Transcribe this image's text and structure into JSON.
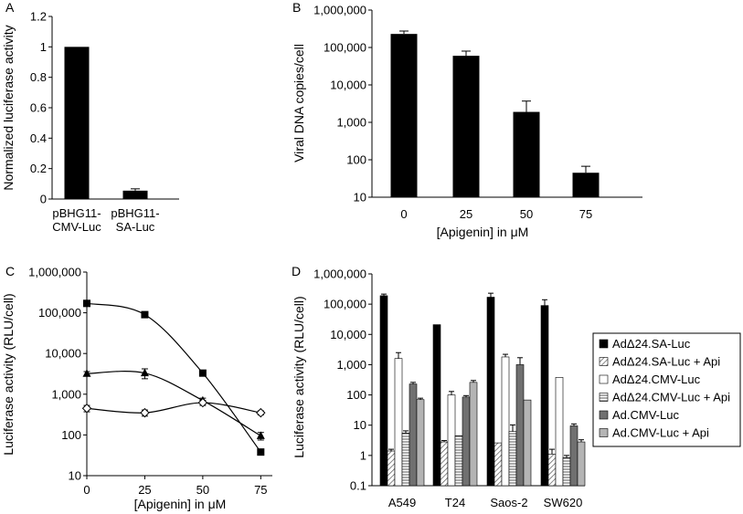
{
  "colors": {
    "black": "#000000",
    "darkgray": "#707070",
    "lightgray": "#b4b4b4",
    "white": "#ffffff"
  },
  "chart_data": [
    {
      "panel": "A",
      "type": "bar",
      "categories": [
        "pBHG11-CMV-Luc",
        "pBHG11-SA-Luc"
      ],
      "category_lines": [
        [
          "pBHG11-",
          "CMV-Luc"
        ],
        [
          "pBHG11-",
          "SA-Luc"
        ]
      ],
      "values": [
        1.0,
        0.055
      ],
      "errors": [
        0,
        0.012
      ],
      "ylabel": "Normalized luciferase activity",
      "xlabel": "",
      "ylim": [
        0,
        1.2
      ],
      "yticks": [
        0,
        0.2,
        0.4,
        0.6,
        0.8,
        1,
        1.2
      ],
      "ytick_labels": [
        "0",
        "0.2",
        "0.4",
        "0.6",
        "0.8",
        "1",
        "1.2"
      ],
      "scale": "linear"
    },
    {
      "panel": "B",
      "type": "bar",
      "categories": [
        "0",
        "25",
        "50",
        "75"
      ],
      "values": [
        230000,
        60000,
        1900,
        45
      ],
      "errors": [
        45000,
        20000,
        1800,
        22
      ],
      "ylabel": "Viral DNA copies/cell",
      "xlabel": "[Apigenin] in μM",
      "ylim": [
        10,
        1000000
      ],
      "yticks": [
        10,
        100,
        1000,
        10000,
        100000,
        1000000
      ],
      "ytick_labels": [
        "10",
        "100",
        "1,000",
        "10,000",
        "100,000",
        "1,000,000"
      ],
      "scale": "log"
    },
    {
      "panel": "C",
      "type": "line",
      "x": [
        0,
        25,
        50,
        75
      ],
      "xlim": [
        0,
        80
      ],
      "xticks": [
        0,
        25,
        50,
        75
      ],
      "series": [
        {
          "marker": "square",
          "values": [
            170000,
            90000,
            3300,
            38
          ],
          "errors": [
            25000,
            10000,
            500,
            6
          ]
        },
        {
          "marker": "triangle",
          "values": [
            3200,
            3300,
            700,
            95
          ],
          "errors": [
            400,
            900,
            100,
            20
          ]
        },
        {
          "marker": "diamond",
          "values": [
            450,
            350,
            620,
            350
          ],
          "errors": [
            80,
            60,
            90,
            40
          ]
        }
      ],
      "ylabel": "Luciferase activity (RLU/cell)",
      "xlabel": "[Apigenin] in μM",
      "ylim": [
        10,
        1000000
      ],
      "yticks": [
        10,
        100,
        1000,
        10000,
        100000,
        1000000
      ],
      "ytick_labels": [
        "10",
        "100",
        "1,000",
        "10,000",
        "100,000",
        "1,000,000"
      ],
      "scale": "log"
    },
    {
      "panel": "D",
      "type": "bar",
      "categories": [
        "A549",
        "T24",
        "Saos-2",
        "SW620"
      ],
      "series": [
        {
          "name": "AdΔ24.SA-Luc",
          "style": "black",
          "values": [
            190000,
            21000,
            170000,
            90000
          ],
          "errors": [
            25000,
            0,
            60000,
            50000
          ]
        },
        {
          "name": "AdΔ24.SA-Luc + Api",
          "style": "diag",
          "values": [
            1.4,
            2.8,
            2.6,
            1.1
          ],
          "errors": [
            0.2,
            0.3,
            0,
            0.5
          ]
        },
        {
          "name": "AdΔ24.CMV-Luc",
          "style": "white",
          "values": [
            1600,
            100,
            1800,
            380
          ],
          "errors": [
            900,
            30,
            400,
            0
          ]
        },
        {
          "name": "AdΔ24.CMV-Luc + Api",
          "style": "horiz",
          "values": [
            5.5,
            4.5,
            6.2,
            0.85
          ],
          "errors": [
            1,
            0,
            4,
            0.15
          ]
        },
        {
          "name": "Ad.CMV-Luc",
          "style": "darkgray",
          "values": [
            230,
            85,
            1000,
            9.5
          ],
          "errors": [
            30,
            10,
            700,
            1.5
          ]
        },
        {
          "name": "Ad.CMV-Luc + Api",
          "style": "lightgray",
          "values": [
            70,
            260,
            68,
            2.8
          ],
          "errors": [
            8,
            40,
            0,
            0.5
          ]
        }
      ],
      "ylabel": "Luciferase activity (RLU/cell)",
      "xlabel": "",
      "ylim": [
        0.1,
        1000000
      ],
      "yticks": [
        0.1,
        1,
        10,
        100,
        1000,
        10000,
        100000,
        1000000
      ],
      "ytick_labels": [
        "0.1",
        "1",
        "10",
        "100",
        "1,000",
        "10,000",
        "100,000",
        "1,000,000"
      ],
      "scale": "log",
      "legend": "right"
    }
  ]
}
